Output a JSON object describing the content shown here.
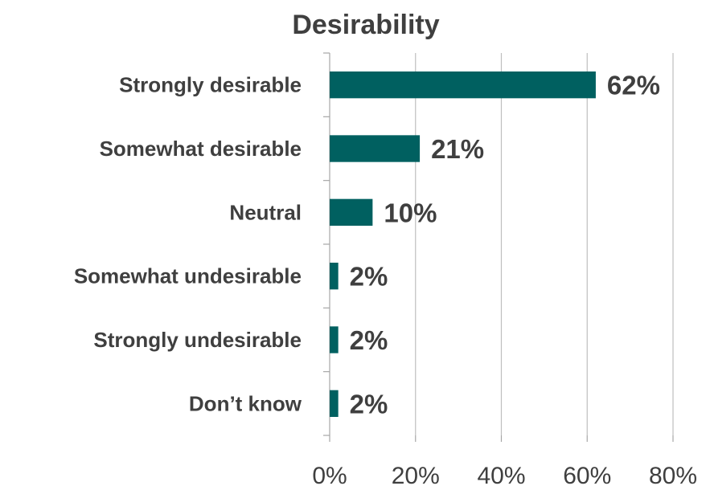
{
  "chart_data": {
    "type": "bar",
    "orientation": "horizontal",
    "title": "Desirability",
    "categories": [
      "Strongly desirable",
      "Somewhat desirable",
      "Neutral",
      "Somewhat undesirable",
      "Strongly undesirable",
      "Don’t know"
    ],
    "values": [
      62,
      21,
      10,
      2,
      2,
      2
    ],
    "data_labels": [
      "62%",
      "21%",
      "10%",
      "2%",
      "2%",
      "2%"
    ],
    "xlim": [
      0,
      80
    ],
    "x_ticks": [
      0,
      20,
      40,
      60,
      80
    ],
    "x_tick_labels": [
      "0%",
      "20%",
      "40%",
      "60%",
      "80%"
    ],
    "xlabel": "",
    "ylabel": "",
    "grid": true,
    "legend": "none",
    "bar_color": "#006060"
  }
}
